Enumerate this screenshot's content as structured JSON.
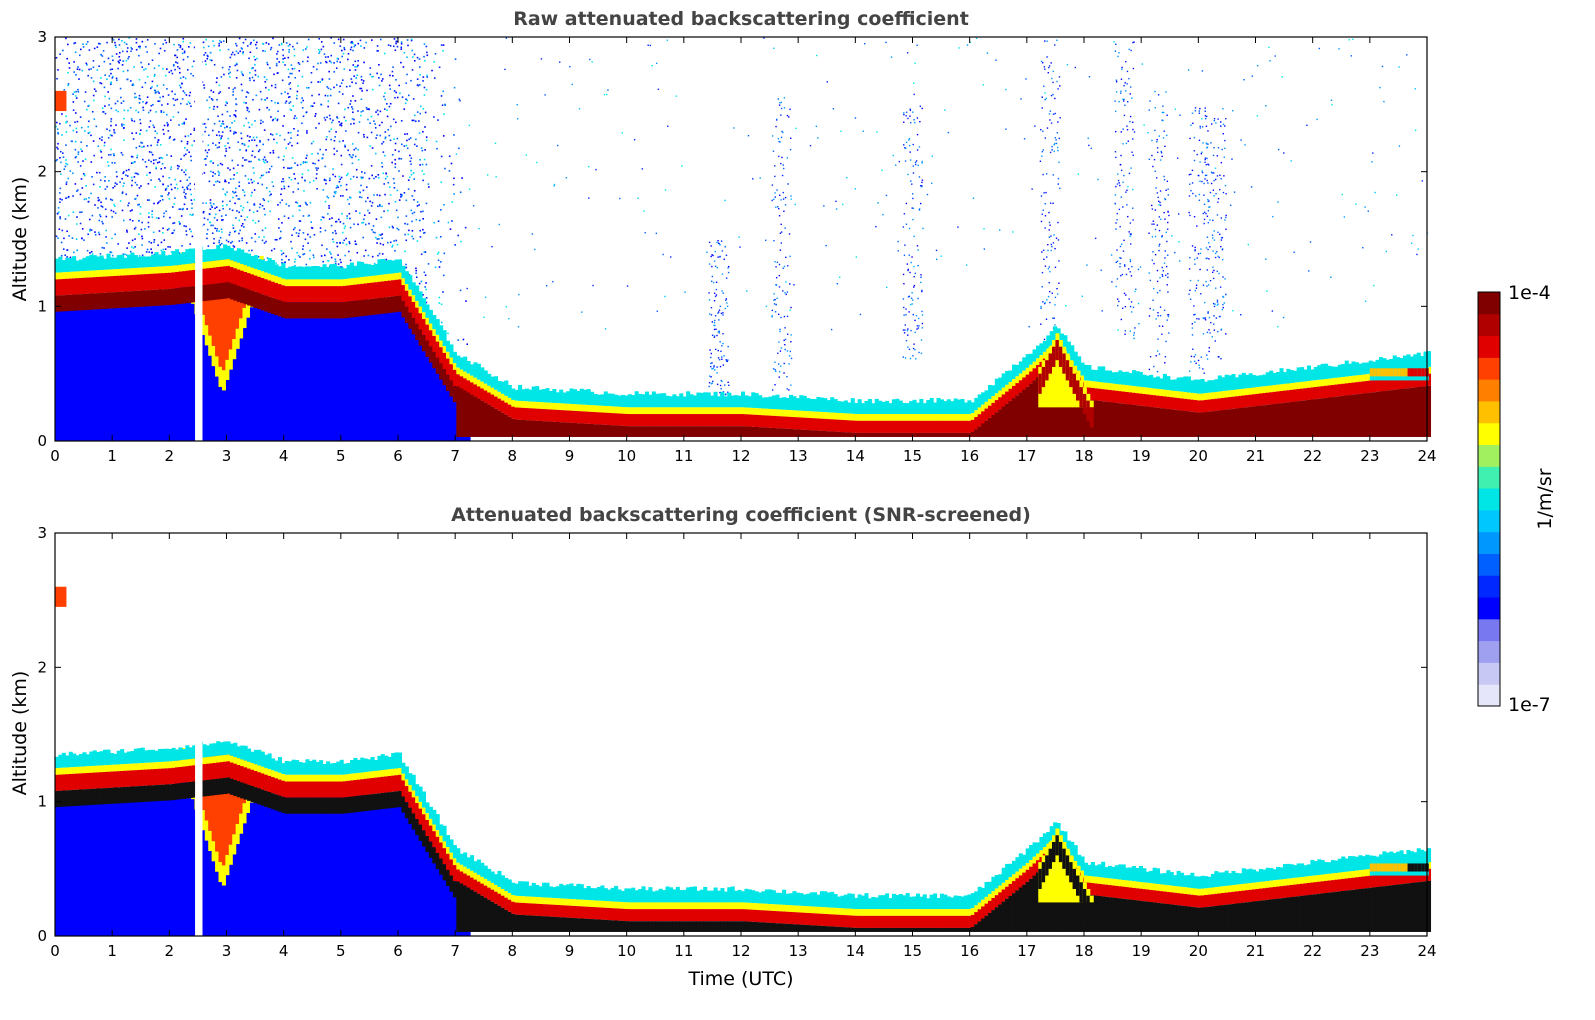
{
  "colorbar": {
    "max_label": "1e-4",
    "min_label": "1e-7",
    "unit_label": "1/m/sr",
    "colors": [
      "#e6e6fa",
      "#c8c8f5",
      "#a0a0f0",
      "#7878f0",
      "#0000ff",
      "#0028ff",
      "#0060ff",
      "#0098ff",
      "#00c8ff",
      "#00e6e6",
      "#40f0b0",
      "#a0f060",
      "#ffff00",
      "#ffc000",
      "#ff8000",
      "#ff4000",
      "#e00000",
      "#b00000",
      "#800000"
    ]
  },
  "chart_data": [
    {
      "type": "heatmap",
      "title": "Raw attenuated backscattering coefficient",
      "xlabel": "",
      "ylabel": "Altitude (km)",
      "xlim": [
        0,
        24
      ],
      "ylim": [
        0,
        3
      ],
      "xticks": [
        0,
        1,
        2,
        3,
        4,
        5,
        6,
        7,
        8,
        9,
        10,
        11,
        12,
        13,
        14,
        15,
        16,
        17,
        18,
        19,
        20,
        21,
        22,
        23,
        24
      ],
      "yticks": [
        0,
        1,
        2,
        3
      ],
      "colorscale": "log",
      "value_range": [
        1e-07,
        0.0001
      ],
      "cloud_layer_top_km": [
        [
          0,
          1.3
        ],
        [
          2,
          1.35
        ],
        [
          3,
          1.4
        ],
        [
          4,
          1.25
        ],
        [
          5,
          1.25
        ],
        [
          6,
          1.3
        ],
        [
          7,
          0.6
        ],
        [
          8,
          0.35
        ],
        [
          10,
          0.3
        ],
        [
          12,
          0.3
        ],
        [
          14,
          0.25
        ],
        [
          16,
          0.25
        ],
        [
          17,
          0.6
        ],
        [
          17.5,
          0.8
        ],
        [
          18,
          0.5
        ],
        [
          20,
          0.4
        ],
        [
          21,
          0.45
        ],
        [
          22,
          0.5
        ],
        [
          23,
          0.55
        ],
        [
          24,
          0.6
        ]
      ]
    },
    {
      "type": "heatmap",
      "title": "Attenuated backscattering coefficient (SNR-screened)",
      "xlabel": "Time (UTC)",
      "ylabel": "Altitude (km)",
      "xlim": [
        0,
        24
      ],
      "ylim": [
        0,
        3
      ],
      "xticks": [
        0,
        1,
        2,
        3,
        4,
        5,
        6,
        7,
        8,
        9,
        10,
        11,
        12,
        13,
        14,
        15,
        16,
        17,
        18,
        19,
        20,
        21,
        22,
        23,
        24
      ],
      "yticks": [
        0,
        1,
        2,
        3
      ],
      "colorscale": "log",
      "value_range": [
        1e-07,
        0.0001
      ]
    }
  ]
}
